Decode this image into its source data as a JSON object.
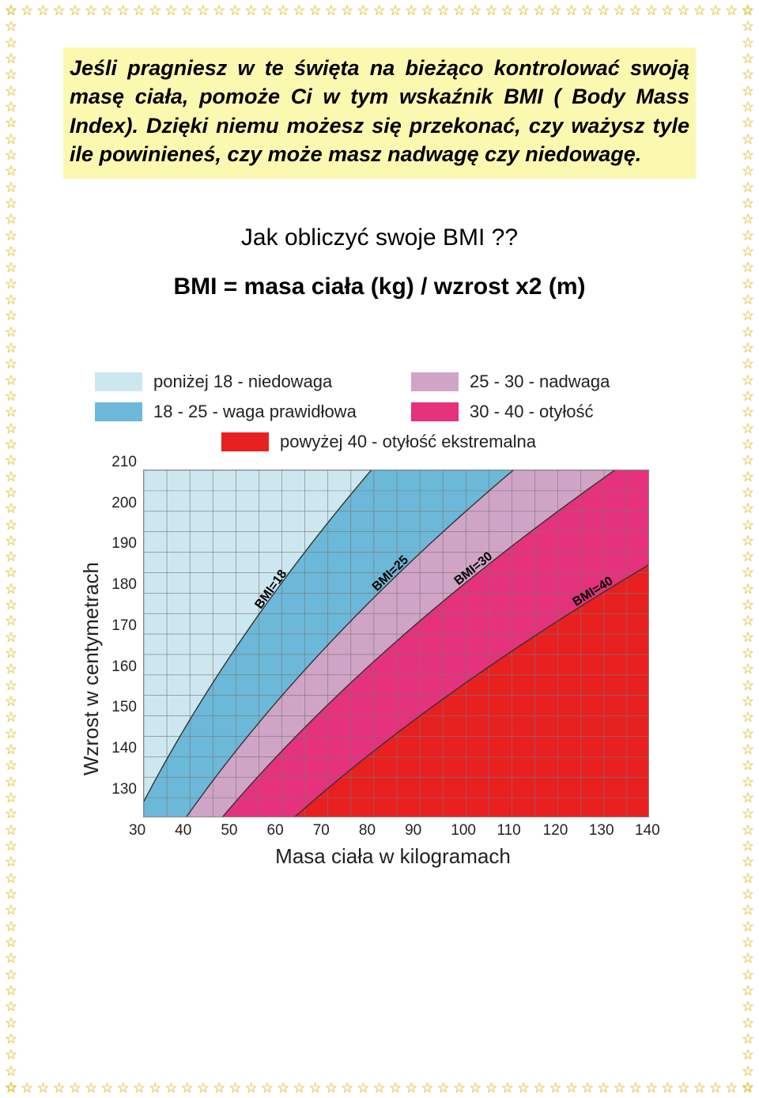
{
  "intro_text": "Jeśli pragniesz w te święta na bieżąco kontrolować swoją masę ciała, pomoże Ci w tym wskaźnik BMI ( Body Mass Index). Dzięki niemu możesz się przekonać, czy ważysz tyle ile powinieneś, czy może masz nadwagę czy niedowagę.",
  "heading_question": "Jak obliczyć swoje BMI ??",
  "formula": "BMI =   masa ciała (kg) / wzrost x2 (m)",
  "border": {
    "star_glyph": "☆",
    "star_color": "#f0d040",
    "h_count": 47,
    "v_count": 68
  },
  "colors": {
    "highlight_bg": "#fbf8b0",
    "page_bg": "#ffffff"
  },
  "legend": {
    "fontsize": 22,
    "items": [
      {
        "color": "#cde7f0",
        "label": "poniżej 18 - niedowaga"
      },
      {
        "color": "#6cb8d8",
        "label": "18 - 25 - waga prawidłowa"
      },
      {
        "color": "#d0a4c7",
        "label": "25 - 30 - nadwaga"
      },
      {
        "color": "#e6317c",
        "label": "30 - 40 - otyłość"
      },
      {
        "color": "#e82020",
        "label": "powyżej 40 - otyłość ekstremalna"
      }
    ]
  },
  "chart": {
    "type": "area-band",
    "x_axis": {
      "label": "Masa ciała w kilogramach",
      "min": 30,
      "max": 140,
      "tick_step": 10,
      "minor_step": 5
    },
    "y_axis": {
      "label": "Wzrost w centymetrach",
      "min": 125,
      "max": 210,
      "tick_step": 10,
      "minor_step": 5,
      "tick_min_shown": 130
    },
    "grid_color": "#777777",
    "label_fontsize": 26,
    "tick_fontsize": 19,
    "bmi_lines": [
      18,
      25,
      30,
      40
    ],
    "bmi_line_labels": [
      "BMI=18",
      "BMI=25",
      "BMI=30",
      "BMI=40"
    ],
    "region_colors": {
      "under18": "#cde7f0",
      "18_25": "#6cb8d8",
      "25_30": "#d0a4c7",
      "30_40": "#e6317c",
      "over40": "#e82020"
    }
  }
}
